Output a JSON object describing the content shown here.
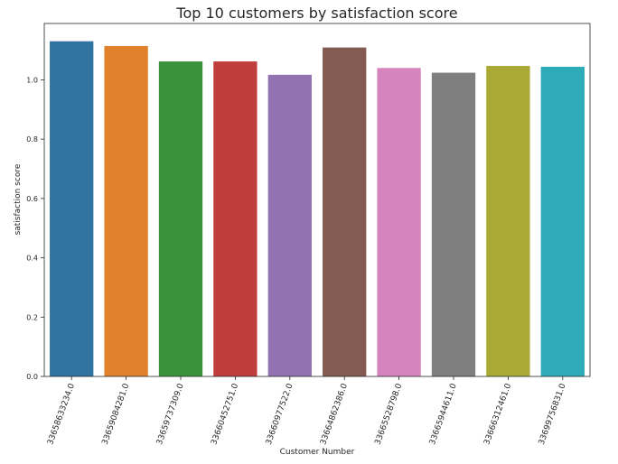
{
  "chart_data": {
    "type": "bar",
    "title": "Top 10 customers by satisfaction score",
    "xlabel": "Customer Number",
    "ylabel": "satisfaction score",
    "ylim": [
      0,
      1.19
    ],
    "yticks": [
      0.0,
      0.2,
      0.4,
      0.6,
      0.8,
      1.0
    ],
    "ytick_labels": [
      "0.0",
      "0.2",
      "0.4",
      "0.6",
      "0.8",
      "1.0"
    ],
    "grid": false,
    "categories": [
      "33658633234.0",
      "33659084281.0",
      "33659737309.0",
      "33660452751.0",
      "33660977522.0",
      "33664862386.0",
      "33665528798.0",
      "33665944611.0",
      "33666312461.0",
      "33699756831.0"
    ],
    "values": [
      1.13,
      1.114,
      1.062,
      1.062,
      1.017,
      1.109,
      1.04,
      1.024,
      1.047,
      1.044
    ],
    "colors": [
      "#3274a1",
      "#e1812c",
      "#3a923a",
      "#c03d3e",
      "#9372b2",
      "#845b53",
      "#d684bd",
      "#7f7f7f",
      "#a9aa35",
      "#2eabb8"
    ]
  }
}
